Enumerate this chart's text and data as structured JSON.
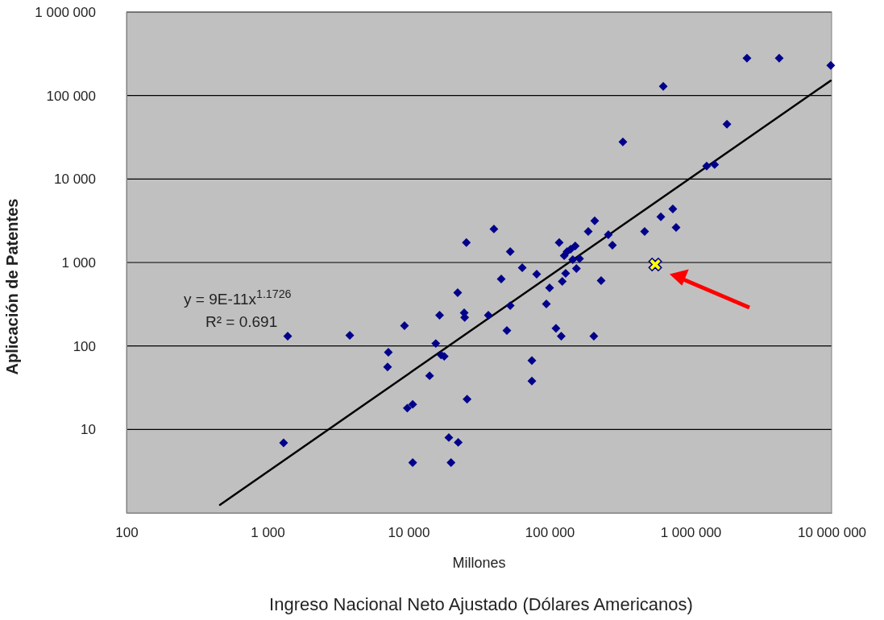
{
  "chart_data": {
    "type": "scatter",
    "xlabel": "Millones",
    "ylabel": "Aplicación de Patentes",
    "annotations": [
      "y = 9E-11x$^{1.1726}$",
      "R² = 0.691",
      "Ingreso Nacional Neto Ajustado (Dólares Americanos)"
    ],
    "log": "xy",
    "grid": "y",
    "marker": "diamond",
    "xlim": [
      100,
      10000000
    ],
    "ylim": [
      1,
      1000000
    ],
    "xticks": [
      100,
      {
        "value": 1000,
        "label": "1 000"
      },
      {
        "value": 10000,
        "label": "10 000"
      },
      {
        "value": 100000,
        "label": "100 000"
      },
      {
        "value": 1000000,
        "label": "1 000 000"
      },
      {
        "value": 10000000,
        "label": "10 000 000"
      }
    ],
    "yticks": [
      10,
      100,
      {
        "value": 1000,
        "label": "1 000"
      },
      {
        "value": 10000,
        "label": "10 000"
      },
      {
        "value": 100000,
        "label": "100 000"
      },
      {
        "value": 1000000,
        "label": "1 000 000"
      }
    ],
    "series": [
      {
        "color": "#00008b",
        "x": [
          1390,
          1300,
          3830,
          7190,
          7100,
          9360,
          9800,
          10700,
          10700,
          14100,
          15600,
          16600,
          17000,
          17900,
          19300,
          20000,
          22300,
          22500,
          24800,
          25000,
          25700,
          26000,
          36800,
          40300,
          45400,
          49800,
          52600,
          52600,
          64000,
          74900,
          74900,
          81000,
          94900,
          100000,
          111000,
          117000,
          121000,
          123000,
          127000,
          130000,
          133000,
          141000,
          146000,
          152000,
          155000,
          163000,
          188000,
          209000,
          206000,
          232000,
          261000,
          279000,
          331000,
          472000,
          615000,
          640000,
          748000,
          789000,
          1300000,
          1480000,
          1810000,
          2510000,
          4250000,
          9860000
        ],
        "values": [
          131,
          6.9,
          134,
          84,
          56,
          175,
          18,
          20,
          4,
          44,
          107,
          233,
          78,
          75,
          8,
          4,
          434,
          7,
          249,
          220,
          1730,
          23,
          233,
          2520,
          634,
          153,
          1350,
          304,
          865,
          67,
          38,
          724,
          318,
          497,
          163,
          1730,
          131,
          593,
          1210,
          741,
          1350,
          1440,
          1080,
          1580,
          847,
          1110,
          2350,
          3150,
          131,
          606,
          2150,
          1610,
          27800,
          2350,
          3520,
          129000,
          4390,
          2630,
          14300,
          14900,
          45400,
          281000,
          281000,
          230000
        ]
      },
      {
        "type": "scatter",
        "color": "#ffff00",
        "marker": "cross",
        "x": [
          561000
        ],
        "values": [
          946
        ]
      },
      {
        "type": "line",
        "color": "#000000",
        "marker": "none",
        "x": [
          460,
          9860000
        ],
        "values": [
          1.25,
          151000
        ]
      }
    ]
  }
}
